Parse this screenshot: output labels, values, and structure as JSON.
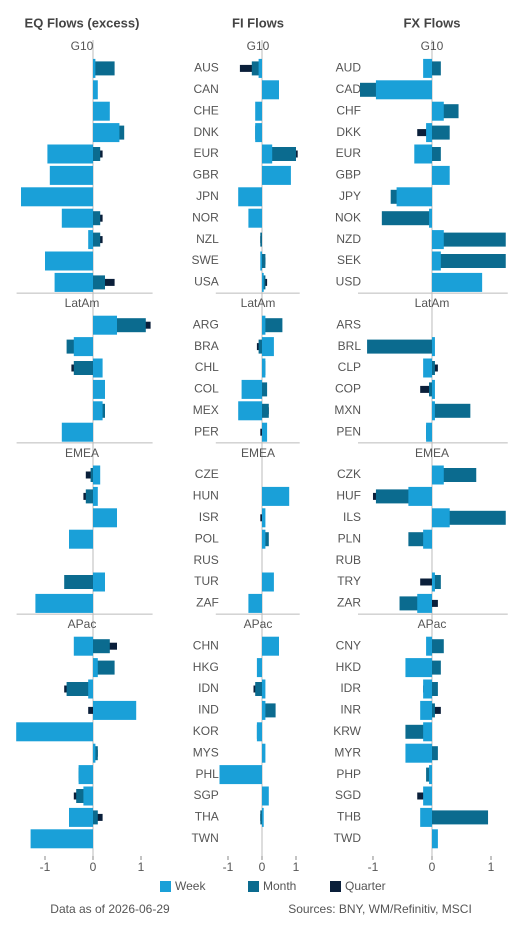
{
  "chart_data": [
    {
      "type": "bar",
      "title": "EQ Flows (excess)",
      "xlim": [
        -1.55,
        1.2
      ],
      "xticks": [
        -1,
        0,
        1
      ],
      "groups": [
        {
          "name": "G10",
          "series": [
            {
              "values": [
                0.05,
                0.1,
                0.35,
                0.55,
                -0.95,
                -0.9,
                -1.5,
                -0.65,
                -0.1,
                -1.0,
                -0.8
              ]
            },
            {
              "values": [
                0.45,
                0.02,
                0.3,
                0.65,
                0.15,
                -0.4,
                -0.1,
                0.15,
                0.15,
                -0.55,
                0.25
              ]
            },
            {
              "values": [
                0.4,
                0.0,
                0.3,
                0.6,
                0.2,
                -0.1,
                -0.1,
                0.2,
                0.2,
                -0.3,
                0.45
              ]
            }
          ]
        },
        {
          "name": "LatAm",
          "series": [
            {
              "values": [
                0.5,
                -0.4,
                0.2,
                0.25,
                0.2,
                -0.65
              ]
            },
            {
              "values": [
                1.1,
                -0.55,
                -0.4,
                0.1,
                0.25,
                -0.5
              ]
            },
            {
              "values": [
                1.2,
                -0.1,
                -0.45,
                0.05,
                0.2,
                -0.1
              ]
            }
          ]
        },
        {
          "name": "EMEA",
          "series": [
            {
              "values": [
                0.15,
                0.1,
                0.5,
                -0.5,
                null,
                0.25,
                -1.2
              ]
            },
            {
              "values": [
                -0.05,
                -0.15,
                0.15,
                -0.45,
                null,
                -0.6,
                -1.05
              ]
            },
            {
              "values": [
                -0.15,
                -0.2,
                0.1,
                -0.4,
                null,
                -0.15,
                -1.0
              ]
            }
          ]
        },
        {
          "name": "APac",
          "series": [
            {
              "values": [
                -0.4,
                0.1,
                -0.1,
                0.9,
                -1.6,
                0.05,
                -0.3,
                -0.2,
                -0.5,
                -1.3
              ]
            },
            {
              "values": [
                0.35,
                0.45,
                -0.55,
                0.35,
                -1.2,
                0.1,
                -0.3,
                -0.35,
                0.1,
                -0.35
              ]
            },
            {
              "values": [
                0.5,
                0.1,
                -0.6,
                -0.1,
                -1.3,
                0.1,
                -0.3,
                -0.4,
                0.2,
                -0.3
              ]
            }
          ]
        }
      ]
    },
    {
      "type": "bar",
      "title": "FI Flows",
      "xlim": [
        -1.3,
        1.05
      ],
      "xticks": [
        -1,
        0,
        1
      ],
      "groups": [
        {
          "name": "G10",
          "categories": [
            "AUS",
            "CAN",
            "CHE",
            "DNK",
            "EUR",
            "GBR",
            "JPN",
            "NOR",
            "NZL",
            "SWE",
            "USA"
          ],
          "series": [
            {
              "values": [
                -0.1,
                0.5,
                -0.2,
                -0.2,
                0.3,
                0.85,
                -0.7,
                -0.4,
                0.0,
                -0.05,
                0.05
              ]
            },
            {
              "values": [
                -0.3,
                0.25,
                -0.1,
                -0.2,
                1.0,
                0.45,
                -0.1,
                -0.15,
                -0.05,
                0.1,
                0.1
              ]
            },
            {
              "values": [
                -0.65,
                0.1,
                -0.05,
                -0.15,
                1.05,
                0.4,
                -0.05,
                -0.1,
                -0.05,
                0.1,
                0.15
              ]
            }
          ]
        },
        {
          "name": "LatAm",
          "categories": [
            "ARG",
            "BRA",
            "CHL",
            "COL",
            "MEX",
            "PER"
          ],
          "series": [
            {
              "values": [
                0.1,
                0.35,
                0.1,
                -0.6,
                -0.7,
                0.15
              ]
            },
            {
              "values": [
                0.6,
                -0.1,
                0.1,
                0.15,
                0.2,
                0.1
              ]
            },
            {
              "values": [
                0.35,
                -0.15,
                0.05,
                0.1,
                0.2,
                -0.05
              ]
            }
          ]
        },
        {
          "name": "EMEA",
          "categories": [
            "CZE",
            "HUN",
            "ISR",
            "POL",
            "RUS",
            "TUR",
            "ZAF"
          ],
          "series": [
            {
              "values": [
                null,
                0.8,
                0.1,
                0.1,
                null,
                0.35,
                -0.4
              ]
            },
            {
              "values": [
                null,
                0.2,
                0.05,
                0.2,
                null,
                0.1,
                -0.3
              ]
            },
            {
              "values": [
                null,
                0.2,
                -0.05,
                0.15,
                null,
                0.1,
                -0.2
              ]
            }
          ]
        },
        {
          "name": "APac",
          "categories": [
            "CHN",
            "HKG",
            "IDN",
            "IND",
            "KOR",
            "MYS",
            "PHL",
            "SGP",
            "THA",
            "TWN"
          ],
          "series": [
            {
              "values": [
                0.5,
                -0.15,
                0.1,
                0.1,
                -0.15,
                0.1,
                -1.25,
                0.2,
                0.05,
                null
              ]
            },
            {
              "values": [
                0.15,
                -0.1,
                -0.2,
                0.4,
                -0.15,
                0.05,
                -0.1,
                0.1,
                -0.05,
                null
              ]
            },
            {
              "values": [
                0.1,
                -0.05,
                -0.25,
                0.2,
                -0.1,
                0.0,
                -0.05,
                0.05,
                -0.05,
                null
              ]
            }
          ]
        }
      ]
    },
    {
      "type": "bar",
      "title": "FX Flows",
      "xlim": [
        -1.22,
        1.25
      ],
      "xticks": [
        -1,
        0,
        1
      ],
      "groups": [
        {
          "name": "G10",
          "categories": [
            "AUD",
            "CAD",
            "CHF",
            "DKK",
            "EUR",
            "GBP",
            "JPY",
            "NOK",
            "NZD",
            "SEK",
            "USD"
          ],
          "series": [
            {
              "values": [
                -0.15,
                -0.95,
                0.2,
                -0.1,
                -0.3,
                0.3,
                -0.6,
                -0.05,
                0.2,
                0.15,
                0.85
              ]
            },
            {
              "values": [
                0.15,
                -1.22,
                0.45,
                0.3,
                0.15,
                0.1,
                -0.7,
                -0.85,
                1.25,
                1.25,
                0.45
              ]
            },
            {
              "values": [
                0.1,
                -0.8,
                0.25,
                -0.25,
                0.1,
                0.05,
                -0.5,
                -0.05,
                0.35,
                0.5,
                0.5
              ]
            }
          ]
        },
        {
          "name": "LatAm",
          "categories": [
            "ARS",
            "BRL",
            "CLP",
            "COP",
            "MXN",
            "PEN"
          ],
          "series": [
            {
              "values": [
                null,
                0.05,
                -0.15,
                0.05,
                0.05,
                -0.1
              ]
            },
            {
              "values": [
                null,
                -1.1,
                0.05,
                -0.05,
                0.65,
                -0.1
              ]
            },
            {
              "values": [
                null,
                -0.45,
                0.1,
                -0.2,
                0.1,
                -0.05
              ]
            }
          ]
        },
        {
          "name": "EMEA",
          "categories": [
            "CZK",
            "HUF",
            "ILS",
            "PLN",
            "RUB",
            "TRY",
            "ZAR"
          ],
          "series": [
            {
              "values": [
                0.2,
                -0.4,
                0.3,
                -0.15,
                null,
                0.05,
                -0.25
              ]
            },
            {
              "values": [
                0.75,
                -0.95,
                1.25,
                -0.4,
                null,
                0.15,
                -0.55
              ]
            },
            {
              "values": [
                0.25,
                -1.0,
                0.35,
                -0.25,
                null,
                -0.2,
                0.1
              ]
            }
          ]
        },
        {
          "name": "APac",
          "categories": [
            "CNY",
            "HKD",
            "IDR",
            "INR",
            "KRW",
            "MYR",
            "PHP",
            "SGD",
            "THB",
            "TWD"
          ],
          "series": [
            {
              "values": [
                -0.1,
                -0.45,
                -0.15,
                -0.2,
                -0.15,
                -0.45,
                -0.05,
                -0.15,
                -0.2,
                0.1
              ]
            },
            {
              "values": [
                0.2,
                0.15,
                0.1,
                0.05,
                -0.45,
                0.1,
                -0.1,
                -0.1,
                0.95,
                0.05
              ]
            },
            {
              "values": [
                0.15,
                0.1,
                -0.15,
                0.15,
                -0.25,
                0.05,
                0.0,
                -0.25,
                0.25,
                0.0
              ]
            }
          ]
        }
      ]
    }
  ],
  "legend": [
    {
      "name": "Week",
      "color": "#1aa0d8"
    },
    {
      "name": "Month",
      "color": "#0b6b8f"
    },
    {
      "name": "Quarter",
      "color": "#0a1f3a"
    }
  ],
  "footnote": {
    "date_note": "Data as of 2026-06-29",
    "sources": "Sources:  BNY, WM/Refinitiv, MSCI"
  }
}
